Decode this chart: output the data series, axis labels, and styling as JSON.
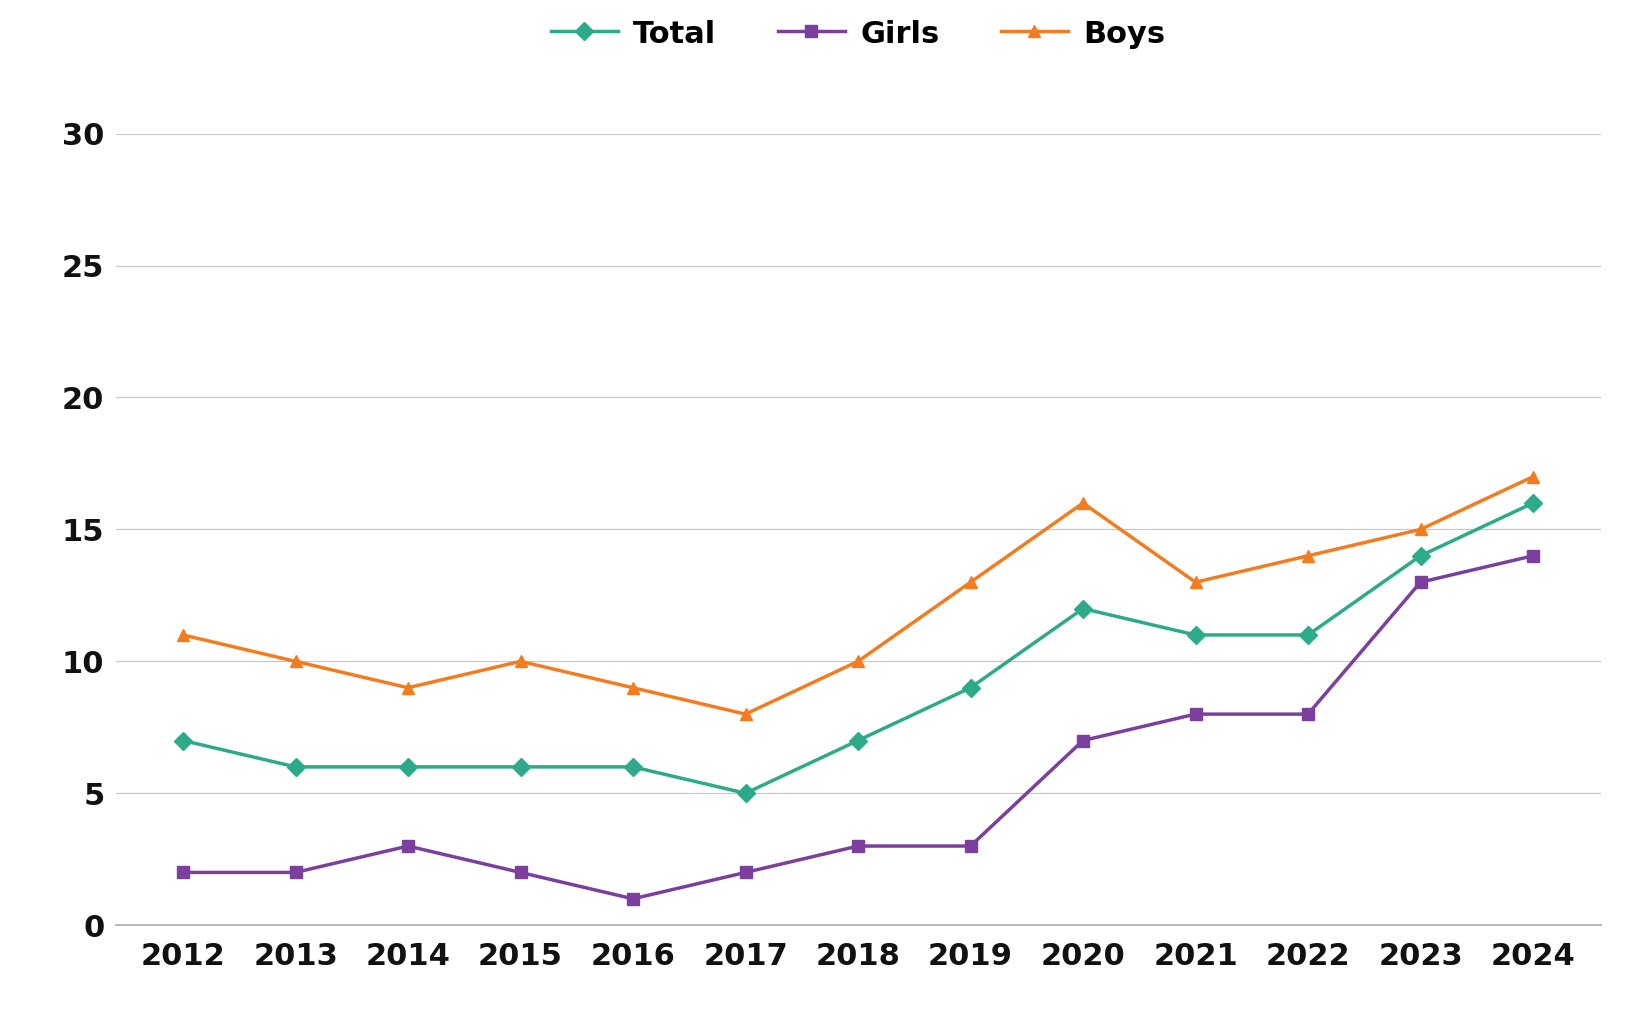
{
  "years": [
    2012,
    2013,
    2014,
    2015,
    2016,
    2017,
    2018,
    2019,
    2020,
    2021,
    2022,
    2023,
    2024
  ],
  "total": [
    7,
    6,
    6,
    6,
    6,
    5,
    7,
    9,
    12,
    11,
    11,
    14,
    16
  ],
  "girls": [
    2,
    2,
    3,
    2,
    1,
    2,
    3,
    3,
    7,
    8,
    8,
    13,
    14
  ],
  "boys": [
    11,
    10,
    9,
    10,
    9,
    8,
    10,
    13,
    16,
    13,
    14,
    15,
    17
  ],
  "total_color": "#2daa8a",
  "girls_color": "#7b3f9e",
  "boys_color": "#f47c20",
  "background_color": "#ffffff",
  "grid_color": "#c8c8c8",
  "tick_label_color": "#111111",
  "legend_labels": [
    "Total",
    "Girls",
    "Boys"
  ],
  "ylim": [
    0,
    30
  ],
  "yticks": [
    0,
    5,
    10,
    15,
    20,
    25,
    30
  ],
  "line_width": 2.5,
  "marker_size": 9,
  "font_size_ticks": 22,
  "font_size_legend": 22
}
